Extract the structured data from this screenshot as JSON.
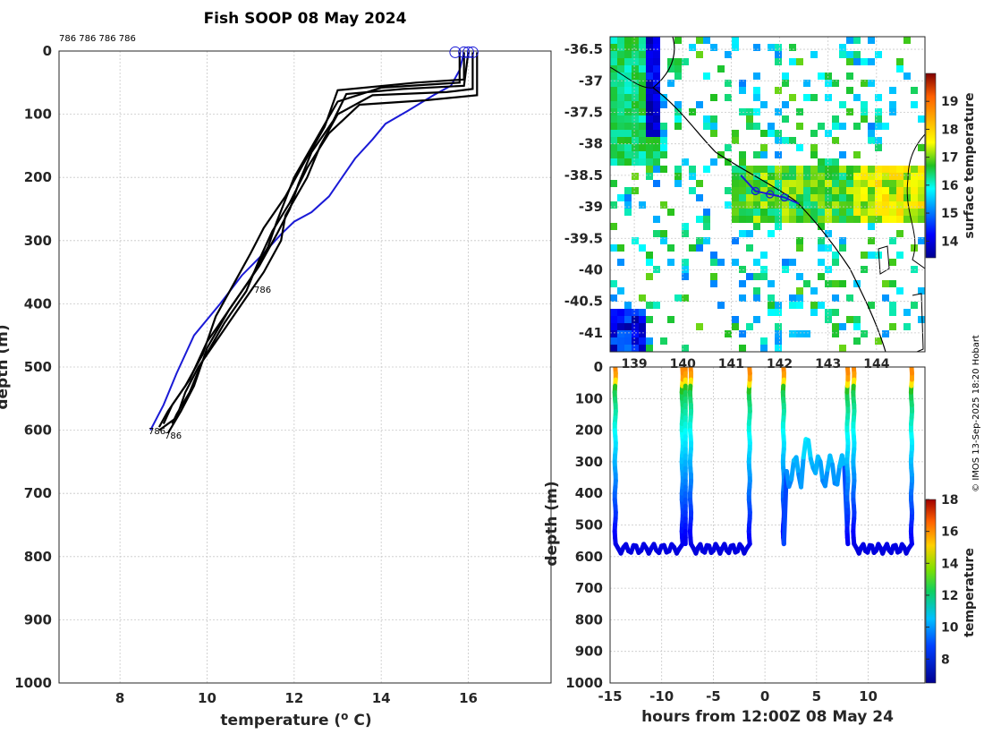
{
  "chart_data": [
    {
      "type": "line",
      "title": "Fish SOOP 08 May 2024",
      "xlabel": "temperature (",
      "xlabel_sup": "o",
      "xlabel_end": " C)",
      "ylabel": "depth (m)",
      "xlim": [
        6.6,
        17.9
      ],
      "ylim": [
        0,
        1000
      ],
      "x_ticks": [
        8,
        10,
        12,
        14,
        16
      ],
      "y_ticks": [
        0,
        100,
        200,
        300,
        400,
        500,
        600,
        700,
        800,
        900,
        1000
      ],
      "top_label": "786 786 786 786",
      "profile_labels": [
        "786",
        "786",
        "786"
      ],
      "series": [
        {
          "name": "blue-profile",
          "color": "#1a1ad6",
          "points": [
            [
              15.9,
              2
            ],
            [
              15.8,
              30
            ],
            [
              15.6,
              55
            ],
            [
              15.2,
              70
            ],
            [
              14.6,
              95
            ],
            [
              14.1,
              115
            ],
            [
              13.8,
              140
            ],
            [
              13.4,
              170
            ],
            [
              13.1,
              200
            ],
            [
              12.8,
              230
            ],
            [
              12.4,
              255
            ],
            [
              12.0,
              270
            ],
            [
              11.7,
              290
            ],
            [
              11.3,
              320
            ],
            [
              10.8,
              355
            ],
            [
              10.3,
              400
            ],
            [
              9.7,
              450
            ],
            [
              9.3,
              510
            ],
            [
              9.0,
              560
            ],
            [
              8.7,
              600
            ]
          ]
        },
        {
          "name": "black-profile-1",
          "color": "#000000",
          "points": [
            [
              16.1,
              2
            ],
            [
              16.1,
              60
            ],
            [
              15.5,
              65
            ],
            [
              13.8,
              70
            ],
            [
              13.0,
              100
            ],
            [
              12.6,
              150
            ],
            [
              12.3,
              200
            ],
            [
              11.8,
              260
            ],
            [
              11.7,
              300
            ],
            [
              11.3,
              350
            ],
            [
              10.8,
              400
            ],
            [
              10.3,
              450
            ],
            [
              9.8,
              500
            ],
            [
              9.5,
              540
            ],
            [
              9.3,
              580
            ],
            [
              8.9,
              600
            ]
          ]
        },
        {
          "name": "black-profile-2",
          "color": "#000000",
          "points": [
            [
              16.0,
              2
            ],
            [
              15.9,
              55
            ],
            [
              14.5,
              60
            ],
            [
              13.2,
              68
            ],
            [
              12.9,
              110
            ],
            [
              12.4,
              160
            ],
            [
              12.1,
              210
            ],
            [
              11.9,
              250
            ],
            [
              11.6,
              290
            ],
            [
              11.2,
              340
            ],
            [
              10.6,
              400
            ],
            [
              10.0,
              460
            ],
            [
              9.6,
              520
            ],
            [
              9.2,
              560
            ],
            [
              9.0,
              590
            ]
          ]
        },
        {
          "name": "black-profile-3",
          "color": "#000000",
          "points": [
            [
              15.8,
              2
            ],
            [
              15.8,
              50
            ],
            [
              14.0,
              58
            ],
            [
              13.0,
              80
            ],
            [
              12.5,
              140
            ],
            [
              12.0,
              200
            ],
            [
              11.6,
              270
            ],
            [
              11.4,
              310
            ],
            [
              11.0,
              360
            ],
            [
              10.5,
              410
            ],
            [
              10.0,
              470
            ],
            [
              9.7,
              530
            ],
            [
              9.4,
              570
            ],
            [
              9.1,
              605
            ]
          ]
        },
        {
          "name": "black-profile-4",
          "color": "#000000",
          "points": [
            [
              16.2,
              2
            ],
            [
              16.2,
              70
            ],
            [
              15.0,
              78
            ],
            [
              13.5,
              85
            ],
            [
              12.8,
              130
            ],
            [
              12.3,
              185
            ],
            [
              11.9,
              240
            ],
            [
              11.5,
              285
            ],
            [
              11.2,
              330
            ],
            [
              10.9,
              380
            ],
            [
              10.4,
              430
            ],
            [
              9.9,
              490
            ],
            [
              9.6,
              540
            ],
            [
              9.3,
              575
            ],
            [
              9.2,
              590
            ]
          ]
        },
        {
          "name": "black-profile-5",
          "color": "#000000",
          "points": [
            [
              15.9,
              2
            ],
            [
              15.9,
              45
            ],
            [
              14.8,
              50
            ],
            [
              13.0,
              62
            ],
            [
              12.7,
              120
            ],
            [
              12.2,
              180
            ],
            [
              11.8,
              230
            ],
            [
              11.3,
              280
            ],
            [
              11.0,
              320
            ],
            [
              10.6,
              370
            ],
            [
              10.2,
              420
            ],
            [
              9.9,
              480
            ],
            [
              9.5,
              530
            ],
            [
              9.1,
              570
            ],
            [
              8.9,
              595
            ]
          ]
        }
      ],
      "markers": [
        [
          15.7,
          2
        ],
        [
          15.9,
          2
        ],
        [
          16.0,
          2
        ],
        [
          16.1,
          2
        ]
      ]
    },
    {
      "type": "heatmap",
      "kind": "map",
      "xlim": [
        138.5,
        145
      ],
      "ylim": [
        -41.3,
        -36.3
      ],
      "x_ticks": [
        "139",
        "140",
        "141",
        "142",
        "143",
        "144"
      ],
      "y_ticks": [
        "-36.5",
        "-37",
        "-37.5",
        "-38",
        "-38.5",
        "-39",
        "-39.5",
        "-40",
        "-40.5",
        "-41"
      ],
      "colorbar_label": "surface temperature",
      "colorbar_ticks": [
        "14",
        "15",
        "16",
        "17",
        "18",
        "19"
      ],
      "colorbar_range": [
        13.4,
        20.0
      ],
      "track": [
        [
          141.2,
          -38.5
        ],
        [
          141.5,
          -38.75
        ],
        [
          141.8,
          -38.8
        ],
        [
          142.1,
          -38.85
        ],
        [
          142.4,
          -38.95
        ]
      ]
    },
    {
      "type": "scatter",
      "xlabel": "hours from 12:00Z 08 May 24",
      "ylabel": "depth (m)",
      "xlim": [
        -15,
        15.5
      ],
      "ylim": [
        0,
        1000
      ],
      "x_ticks": [
        "-15",
        "-10",
        "-5",
        "0",
        "5",
        "10"
      ],
      "y_ticks": [
        "0",
        "100",
        "200",
        "300",
        "400",
        "500",
        "600",
        "700",
        "800",
        "900",
        "1000"
      ],
      "colorbar_label": "temperature",
      "colorbar_ticks": [
        "8",
        "10",
        "12",
        "14",
        "16",
        "18"
      ],
      "colorbar_range": [
        6.5,
        18
      ],
      "cast_windows": [
        [
          -14.5,
          -8.0
        ],
        [
          -7.2,
          -1.5
        ],
        [
          1.8,
          8.0
        ],
        [
          8.6,
          14.2
        ]
      ]
    }
  ],
  "watermark": "© IMOS 13-Sep-2025 18:20 Hobart"
}
